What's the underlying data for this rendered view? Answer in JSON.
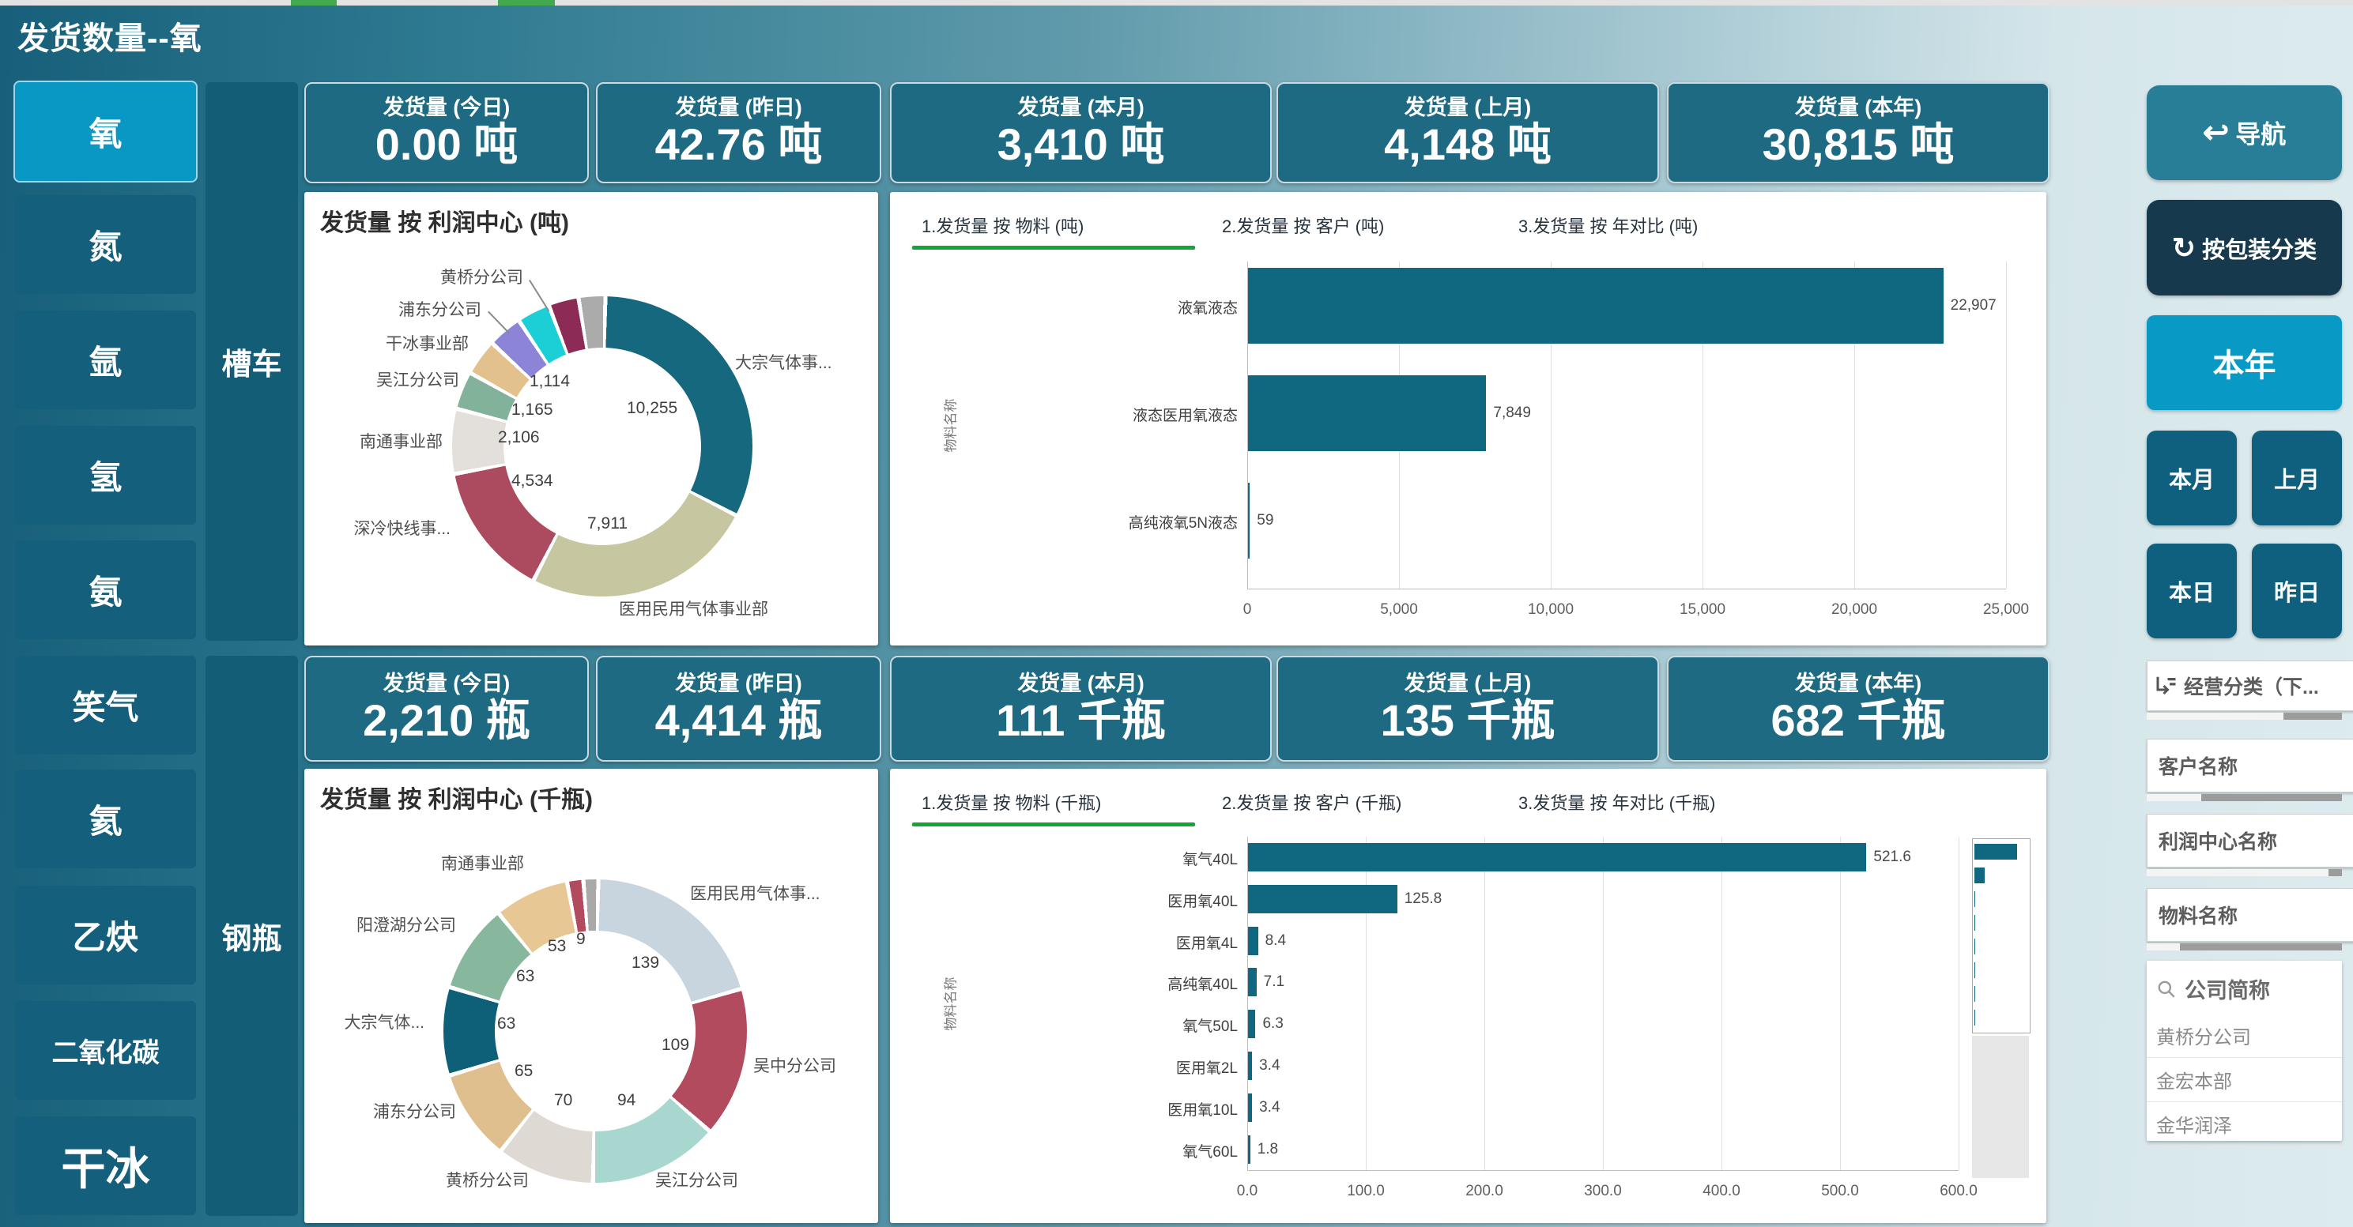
{
  "window": {
    "title": "发货数量--氧"
  },
  "left_nav": {
    "items": [
      "氧",
      "氮",
      "氩",
      "氢",
      "氨",
      "笑气",
      "氦",
      "乙炔",
      "二氧化碳",
      "干冰"
    ],
    "selected": "氧"
  },
  "mode_labels": [
    "槽车",
    "钢瓶"
  ],
  "kpi_row_top": [
    {
      "label": "发货量 (今日)",
      "value": "0.00 吨"
    },
    {
      "label": "发货量 (昨日)",
      "value": "42.76 吨"
    },
    {
      "label": "发货量 (本月)",
      "value": "3,410 吨"
    },
    {
      "label": "发货量 (上月)",
      "value": "4,148 吨"
    },
    {
      "label": "发货量 (本年)",
      "value": "30,815 吨"
    }
  ],
  "kpi_row_bottom": [
    {
      "label": "发货量 (今日)",
      "value": "2,210 瓶"
    },
    {
      "label": "发货量 (昨日)",
      "value": "4,414 瓶"
    },
    {
      "label": "发货量 (本月)",
      "value": "111 千瓶"
    },
    {
      "label": "发货量 (上月)",
      "value": "135 千瓶"
    },
    {
      "label": "发货量 (本年)",
      "value": "682 千瓶"
    }
  ],
  "chart_data": [
    {
      "type": "pie",
      "title": "发货量 按 利润中心 (吨)",
      "legend_position": "outside-labels",
      "segments": [
        {
          "label": "大宗气体事...",
          "value": 10255,
          "value_label": "10,255",
          "color": "#15687e"
        },
        {
          "label": "医用民用气体事业部",
          "value": 7911,
          "value_label": "7,911",
          "color": "#c6c7a0"
        },
        {
          "label": "深冷快线事...",
          "value": 4534,
          "value_label": "4,534",
          "color": "#ac4a5f"
        },
        {
          "label": "南通事业部",
          "value": 2106,
          "value_label": "2,106",
          "color": "#e3dfda"
        },
        {
          "label": "吴江分公司",
          "value": 1165,
          "value_label": "1,165",
          "color": "#83b29a"
        },
        {
          "label": "干冰事业部",
          "value": 1114,
          "value_label": "1,114",
          "color": "#e3c18d"
        },
        {
          "label": "浦东分公司",
          "value": 1050,
          "value_label": "",
          "color": "#8b84d7"
        },
        {
          "label": "黄桥分公司",
          "value": 1000,
          "value_label": "",
          "color": "#1ccfd6"
        },
        {
          "label": "",
          "value": 900,
          "value_label": "",
          "color": "#8c2b55"
        },
        {
          "label": "",
          "value": 780,
          "value_label": "",
          "color": "#ababab"
        }
      ]
    },
    {
      "type": "bar",
      "tabs": [
        "1.发货量 按 物料 (吨)",
        "2.发货量 按 客户 (吨)",
        "3.发货量 按 年对比 (吨)"
      ],
      "active_tab": 0,
      "ylabel": "物料名称",
      "categories": [
        "液氧液态",
        "液态医用氧液态",
        "高纯液氧5N液态"
      ],
      "values": [
        22907,
        7849,
        59
      ],
      "value_labels": [
        "22,907",
        "7,849",
        "59"
      ],
      "xlim": [
        0,
        25000
      ],
      "xticks": [
        0,
        5000,
        10000,
        15000,
        20000,
        25000
      ],
      "xtick_labels": [
        "0",
        "5,000",
        "10,000",
        "15,000",
        "20,000",
        "25,000"
      ]
    },
    {
      "type": "pie",
      "title": "发货量 按 利润中心 (千瓶)",
      "legend_position": "outside-labels",
      "segments": [
        {
          "label": "医用民用气体事...",
          "value": 139,
          "value_label": "139",
          "color": "#c9d5de"
        },
        {
          "label": "吴中分公司",
          "value": 109,
          "value_label": "109",
          "color": "#b34b5e"
        },
        {
          "label": "吴江分公司",
          "value": 94,
          "value_label": "94",
          "color": "#a7d7ce"
        },
        {
          "label": "黄桥分公司",
          "value": 70,
          "value_label": "70",
          "color": "#ded9d2"
        },
        {
          "label": "浦东分公司",
          "value": 65,
          "value_label": "65",
          "color": "#debf8d"
        },
        {
          "label": "大宗气体...",
          "value": 63,
          "value_label": "63",
          "color": "#0e5f78"
        },
        {
          "label": "阳澄湖分公司",
          "value": 63,
          "value_label": "63",
          "color": "#87b89d"
        },
        {
          "label": "南通事业部",
          "value": 53,
          "value_label": "53",
          "color": "#e7c894"
        },
        {
          "label": "",
          "value": 9,
          "value_label": "9",
          "color": "#b34b5e"
        },
        {
          "label": "",
          "value": 8,
          "value_label": "",
          "color": "#a9a9a9"
        }
      ]
    },
    {
      "type": "bar",
      "tabs": [
        "1.发货量 按 物料 (千瓶)",
        "2.发货量 按 客户 (千瓶)",
        "3.发货量 按 年对比 (千瓶)"
      ],
      "active_tab": 0,
      "ylabel": "物料名称",
      "categories": [
        "氧气40L",
        "医用氧40L",
        "医用氧4L",
        "高纯氧40L",
        "氧气50L",
        "医用氧2L",
        "医用氧10L",
        "氧气60L"
      ],
      "values": [
        521.6,
        125.8,
        8.4,
        7.1,
        6.3,
        3.4,
        3.4,
        1.8
      ],
      "value_labels": [
        "521.6",
        "125.8",
        "8.4",
        "7.1",
        "6.3",
        "3.4",
        "3.4",
        "1.8"
      ],
      "xlim": [
        0,
        600
      ],
      "xticks": [
        0,
        100,
        200,
        300,
        400,
        500,
        600
      ],
      "xtick_labels": [
        "0.0",
        "100.0",
        "200.0",
        "300.0",
        "400.0",
        "500.0",
        "600.0"
      ],
      "has_scroll_minimap": true
    }
  ],
  "right_panel": {
    "nav_label": "导航",
    "package_label": "按包装分类",
    "periods": [
      {
        "label": "本年",
        "selected": true
      },
      {
        "label": "本月",
        "selected": false
      },
      {
        "label": "上月",
        "selected": false
      },
      {
        "label": "本日",
        "selected": false
      },
      {
        "label": "昨日",
        "selected": false
      }
    ],
    "slicers": [
      "经营分类（下...",
      "客户名称",
      "利润中心名称",
      "物料名称"
    ],
    "company_search": {
      "title": "公司简称",
      "items": [
        "黄桥分公司",
        "金宏本部",
        "金华润泽"
      ]
    }
  }
}
